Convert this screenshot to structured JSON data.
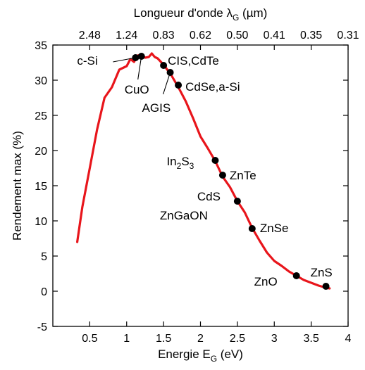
{
  "chart_data": {
    "type": "line",
    "xlabel": "Energie E",
    "xlabel_sub": "G",
    "xlabel_unit": " (eV)",
    "top_xlabel": "Longueur d'onde λ",
    "top_xlabel_sub": "G",
    "top_xlabel_unit": " (µm)",
    "ylabel": "Rendement max (%)",
    "xlim": [
      0,
      4
    ],
    "ylim": [
      -5,
      35
    ],
    "grid": false,
    "x_ticks": [
      0.5,
      1,
      1.5,
      2,
      2.5,
      3,
      3.5,
      4
    ],
    "x_tick_labels": [
      "0.5",
      "1",
      "1.5",
      "2",
      "2.5",
      "3",
      "3.5",
      "4"
    ],
    "y_ticks": [
      -5,
      0,
      5,
      10,
      15,
      20,
      25,
      30,
      35
    ],
    "y_tick_labels": [
      "-5",
      "0",
      "5",
      "10",
      "15",
      "20",
      "25",
      "30",
      "35"
    ],
    "top_ticks": [
      0.5,
      1,
      1.5,
      2,
      2.5,
      3,
      3.5,
      4
    ],
    "top_tick_labels": [
      "2.48",
      "1.24",
      "0.83",
      "0.62",
      "0.50",
      "0.41",
      "0.35",
      "0.31"
    ],
    "series": [
      {
        "color": "#e8151b",
        "x": [
          0.33,
          0.4,
          0.5,
          0.6,
          0.7,
          0.8,
          0.9,
          1.0,
          1.05,
          1.1,
          1.15,
          1.2,
          1.25,
          1.3,
          1.34,
          1.38,
          1.42,
          1.5,
          1.6,
          1.7,
          1.8,
          1.9,
          2.0,
          2.1,
          2.2,
          2.3,
          2.4,
          2.5,
          2.6,
          2.7,
          2.8,
          2.9,
          3.0,
          3.1,
          3.2,
          3.3,
          3.4,
          3.5,
          3.6,
          3.7,
          3.75
        ],
        "y": [
          7.0,
          12.0,
          17.5,
          23.0,
          27.5,
          29.0,
          31.5,
          32.0,
          33.0,
          32.6,
          33.5,
          33.6,
          33.2,
          33.3,
          33.8,
          33.3,
          33.1,
          32.2,
          30.8,
          29.0,
          27.0,
          24.6,
          22.0,
          20.3,
          18.5,
          16.3,
          14.8,
          12.8,
          11.2,
          9.0,
          7.2,
          5.5,
          4.3,
          3.6,
          2.8,
          2.2,
          1.6,
          1.2,
          0.8,
          0.5,
          0.4
        ]
      }
    ],
    "points": [
      {
        "label": "c-Si",
        "x": 1.12,
        "y": 33.2
      },
      {
        "label": "CuO",
        "x": 1.2,
        "y": 33.4
      },
      {
        "label": "CIS,CdTe",
        "x": 1.5,
        "y": 32.1
      },
      {
        "label": "AGIS",
        "x": 1.59,
        "y": 31.1
      },
      {
        "label": "CdSe,a-Si",
        "x": 1.7,
        "y": 29.3
      },
      {
        "label": "In",
        "sub": "2",
        "mid": "S",
        "sub2": "3",
        "x": 2.2,
        "y": 18.6
      },
      {
        "label": "ZnTe",
        "x": 2.3,
        "y": 16.5
      },
      {
        "label": "CdS",
        "x": 2.5,
        "y": 12.8
      },
      {
        "label": "ZnGaON",
        "x": 2.5,
        "y": 12.8
      },
      {
        "label": "ZnSe",
        "x": 2.7,
        "y": 8.9
      },
      {
        "label": "ZnO",
        "x": 3.3,
        "y": 2.2
      },
      {
        "label": "ZnS",
        "x": 3.7,
        "y": 0.7
      }
    ]
  }
}
